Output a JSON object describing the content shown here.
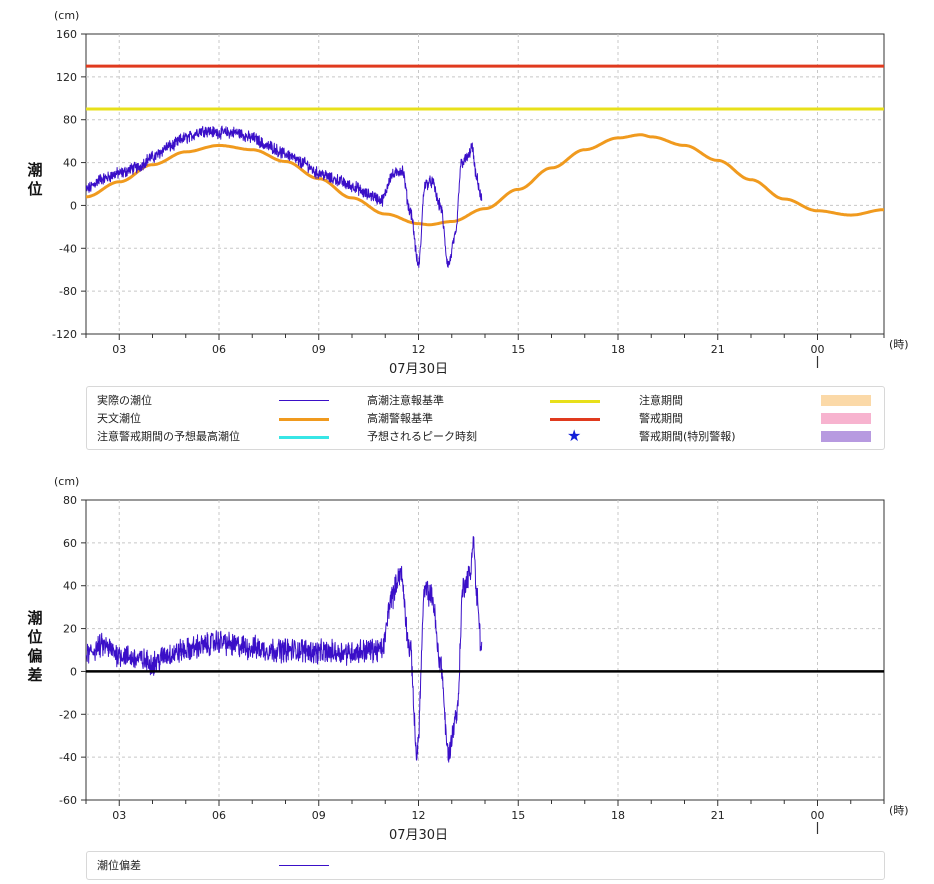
{
  "top_legend": [
    {
      "label": "実際の潮位",
      "kind": "line",
      "color": "#3a0fc8",
      "thin": true
    },
    {
      "label": "天文潮位",
      "kind": "line",
      "color": "#f09a1e"
    },
    {
      "label": "注意警戒期間の予想最高潮位",
      "kind": "line",
      "color": "#38e6e6"
    },
    {
      "label": "高潮注意報基準",
      "kind": "line",
      "color": "#e8e01a"
    },
    {
      "label": "高潮警報基準",
      "kind": "line",
      "color": "#e03a1e"
    },
    {
      "label": "予想されるピーク時刻",
      "kind": "star",
      "color": "#1420d8",
      "symbol": "★"
    },
    {
      "label": "注意期間",
      "kind": "box",
      "color": "#fbd9a8"
    },
    {
      "label": "警戒期間",
      "kind": "box",
      "color": "#f7b3cf"
    },
    {
      "label": "警戒期間(特別警報)",
      "kind": "box",
      "color": "#b79ae0"
    }
  ],
  "bottom_legend": [
    {
      "label": "潮位偏差",
      "kind": "line",
      "color": "#3a0fc8",
      "thin": true
    }
  ],
  "chart_data": [
    {
      "type": "line",
      "ylabel": "潮位",
      "yunit": "(cm)",
      "xunit": "(時)",
      "date_label": "07月30日",
      "x_ticks": [
        "03",
        "06",
        "09",
        "12",
        "15",
        "18",
        "21",
        "00"
      ],
      "x_range_hours": [
        2,
        26
      ],
      "ylim": [
        -120,
        160
      ],
      "y_ticks": [
        -120,
        -80,
        -40,
        0,
        40,
        80,
        120,
        160
      ],
      "grid": true,
      "series": [
        {
          "name": "高潮警報基準",
          "color": "#e03a1e",
          "x": [
            2,
            26
          ],
          "y": [
            130,
            130
          ]
        },
        {
          "name": "高潮注意報基準",
          "color": "#e8e01a",
          "x": [
            2,
            26
          ],
          "y": [
            90,
            90
          ]
        },
        {
          "name": "天文潮位",
          "color": "#f09a1e",
          "x": [
            2,
            3,
            4,
            5,
            6,
            7,
            8,
            9,
            10,
            11,
            12,
            12.3,
            13,
            14,
            15,
            16,
            17,
            18,
            18.7,
            19,
            20,
            21,
            22,
            23,
            24,
            25,
            26
          ],
          "y": [
            8,
            22,
            38,
            50,
            56,
            52,
            41,
            25,
            7,
            -8,
            -17,
            -18,
            -15,
            -3,
            15,
            35,
            52,
            63,
            66,
            64,
            56,
            42,
            24,
            6,
            -5,
            -9,
            -4
          ]
        },
        {
          "name": "実際の潮位",
          "color": "#3a0fc8",
          "x": [
            2,
            2.5,
            3,
            3.5,
            4,
            4.5,
            5,
            5.5,
            6,
            6.5,
            7,
            7.5,
            8,
            8.5,
            9,
            9.5,
            10,
            10.5,
            10.9,
            11.2,
            11.5,
            11.75,
            12.0,
            12.2,
            12.4,
            12.65,
            12.9,
            13.1,
            13.3,
            13.5,
            13.6,
            13.75,
            13.9
          ],
          "y": [
            15,
            25,
            30,
            35,
            45,
            55,
            63,
            70,
            68,
            68,
            63,
            55,
            48,
            40,
            30,
            24,
            18,
            10,
            5,
            28,
            33,
            -5,
            -55,
            20,
            22,
            0,
            -55,
            -30,
            40,
            45,
            55,
            25,
            5
          ]
        }
      ]
    },
    {
      "type": "line",
      "ylabel": "潮位偏差",
      "yunit": "(cm)",
      "xunit": "(時)",
      "date_label": "07月30日",
      "x_ticks": [
        "03",
        "06",
        "09",
        "12",
        "15",
        "18",
        "21",
        "00"
      ],
      "x_range_hours": [
        2,
        26
      ],
      "ylim": [
        -60,
        80
      ],
      "y_ticks": [
        -60,
        -40,
        -20,
        0,
        20,
        40,
        60,
        80
      ],
      "grid": true,
      "series": [
        {
          "name": "潮位偏差",
          "color": "#3a0fc8",
          "x": [
            2,
            2.5,
            3,
            3.5,
            4,
            4.5,
            5,
            5.5,
            6,
            6.5,
            7,
            7.5,
            8,
            8.5,
            9,
            9.5,
            10,
            10.5,
            10.9,
            11.2,
            11.45,
            11.75,
            11.95,
            12.2,
            12.4,
            12.65,
            12.9,
            13.15,
            13.35,
            13.55,
            13.65,
            13.75,
            13.9
          ],
          "y": [
            8,
            12,
            8,
            6,
            4,
            8,
            10,
            12,
            14,
            12,
            11,
            10,
            10,
            10,
            9,
            9,
            9,
            10,
            10,
            35,
            46,
            10,
            -38,
            38,
            35,
            5,
            -38,
            -20,
            40,
            45,
            62,
            35,
            10
          ]
        }
      ]
    }
  ]
}
